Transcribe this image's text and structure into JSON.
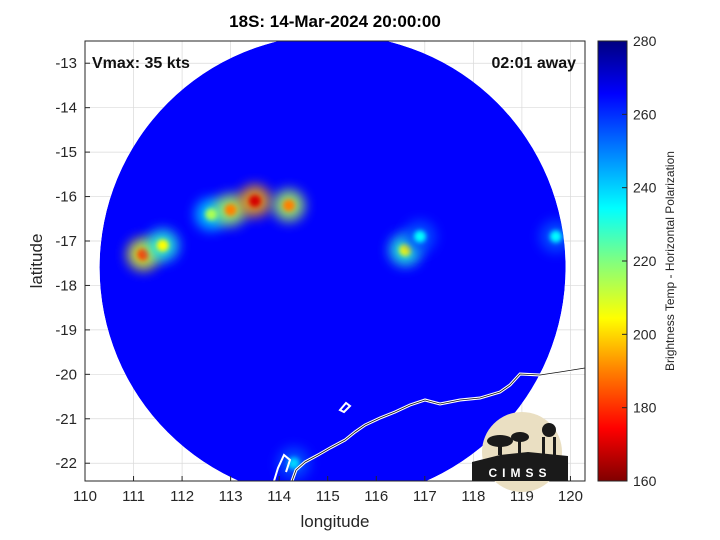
{
  "chart_data": {
    "type": "heatmap",
    "title": "18S: 14-Mar-2024 20:00:00",
    "xlabel": "longitude",
    "ylabel": "latitude",
    "xlim": [
      110,
      120.3
    ],
    "ylim": [
      -22.4,
      -12.5
    ],
    "xticks": [
      110,
      111,
      112,
      113,
      114,
      115,
      116,
      117,
      118,
      119,
      120
    ],
    "yticks": [
      -13,
      -14,
      -15,
      -16,
      -17,
      -18,
      -19,
      -20,
      -21,
      -22
    ],
    "grid": true,
    "colorbar": {
      "label": "Brightness Temp - Horizontal Polarization",
      "range": [
        160,
        280
      ],
      "ticks": [
        280,
        260,
        240,
        220,
        200,
        180,
        160
      ],
      "colormap": [
        "#800000",
        "#ff0000",
        "#ff8000",
        "#ffff00",
        "#80ff80",
        "#00ffff",
        "#0080ff",
        "#0000ff",
        "#000080"
      ]
    },
    "swath": {
      "center_lon": 115.1,
      "center_lat": -17.6,
      "radius_deg": 4.8
    },
    "background_value": 265,
    "features": [
      {
        "lon": 111.2,
        "lat": -17.3,
        "value": 182
      },
      {
        "lon": 111.6,
        "lat": -17.1,
        "value": 205
      },
      {
        "lon": 112.6,
        "lat": -16.4,
        "value": 215
      },
      {
        "lon": 113.0,
        "lat": -16.3,
        "value": 190
      },
      {
        "lon": 113.5,
        "lat": -16.1,
        "value": 170
      },
      {
        "lon": 114.2,
        "lat": -16.2,
        "value": 190
      },
      {
        "lon": 116.6,
        "lat": -17.2,
        "value": 205
      },
      {
        "lon": 116.9,
        "lat": -16.9,
        "value": 235
      },
      {
        "lon": 119.7,
        "lat": -16.9,
        "value": 235
      },
      {
        "lon": 114.3,
        "lat": -22.0,
        "value": 240
      }
    ],
    "annotations": {
      "vmax": "Vmax: 35 kts",
      "time_offset": "02:01 away"
    },
    "logo_text": "CIMSS"
  }
}
